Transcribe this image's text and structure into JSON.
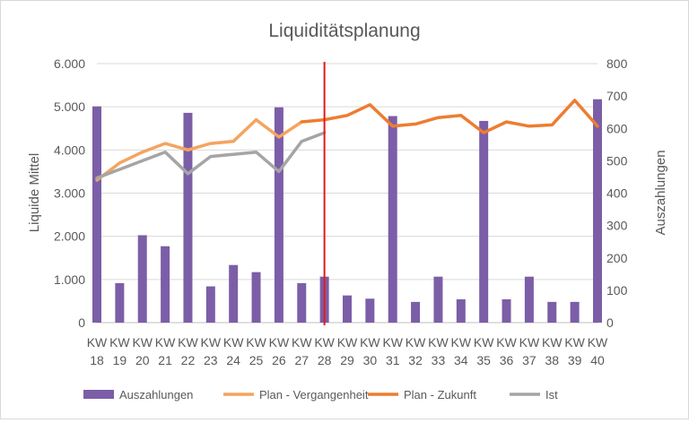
{
  "chart_data": {
    "type": "bar",
    "title": "Liquiditätsplanung",
    "categories": [
      [
        "KW",
        "18"
      ],
      [
        "KW",
        "19"
      ],
      [
        "KW",
        "20"
      ],
      [
        "KW",
        "21"
      ],
      [
        "KW",
        "22"
      ],
      [
        "KW",
        "23"
      ],
      [
        "KW",
        "24"
      ],
      [
        "KW",
        "25"
      ],
      [
        "KW",
        "26"
      ],
      [
        "KW",
        "27"
      ],
      [
        "KW",
        "28"
      ],
      [
        "KW",
        "29"
      ],
      [
        "KW",
        "30"
      ],
      [
        "KW",
        "31"
      ],
      [
        "KW",
        "32"
      ],
      [
        "KW",
        "33"
      ],
      [
        "KW",
        "34"
      ],
      [
        "KW",
        "35"
      ],
      [
        "KW",
        "36"
      ],
      [
        "KW",
        "37"
      ],
      [
        "KW",
        "38"
      ],
      [
        "KW",
        "39"
      ],
      [
        "KW",
        "40"
      ]
    ],
    "left_axis": {
      "label": "Liquide Mittel",
      "ylim": [
        0,
        6000
      ],
      "ticks": [
        0,
        1000,
        2000,
        3000,
        4000,
        5000,
        6000
      ],
      "tick_labels": [
        "0",
        "1.000",
        "2.000",
        "3.000",
        "4.000",
        "5.000",
        "6.000"
      ]
    },
    "right_axis": {
      "label": "Auszahlungen",
      "ylim": [
        0,
        800
      ],
      "ticks": [
        0,
        100,
        200,
        300,
        400,
        500,
        600,
        700,
        800
      ],
      "tick_labels": [
        "0",
        "100",
        "200",
        "300",
        "400",
        "500",
        "600",
        "700",
        "800"
      ]
    },
    "grid": true,
    "legend_position": "bottom",
    "current_week_marker": {
      "category": "28",
      "color": "#e31a1c"
    },
    "series": [
      {
        "name": "Auszahlungen",
        "type": "bar",
        "axis": "right",
        "color": "#7b5ea7",
        "values": [
          668,
          122,
          270,
          236,
          648,
          112,
          178,
          156,
          665,
          122,
          142,
          84,
          74,
          638,
          64,
          142,
          72,
          623,
          72,
          142,
          64,
          64,
          690
        ]
      },
      {
        "name": "Plan - Vergangenheit",
        "type": "line",
        "axis": "left",
        "color": "#f4a460",
        "values": [
          3300,
          3700,
          3950,
          4150,
          4000,
          4150,
          4200,
          4700,
          4300,
          4650,
          null,
          null,
          null,
          null,
          null,
          null,
          null,
          null,
          null,
          null,
          null,
          null,
          null
        ]
      },
      {
        "name": "Plan - Zukunft",
        "type": "line",
        "axis": "left",
        "color": "#ed7d31",
        "values": [
          null,
          null,
          null,
          null,
          null,
          null,
          null,
          null,
          null,
          4650,
          4700,
          4800,
          5050,
          4550,
          4600,
          4750,
          4800,
          4400,
          4650,
          4550,
          4580,
          5150,
          4550
        ]
      },
      {
        "name": "Ist",
        "type": "line",
        "axis": "left",
        "color": "#a5a5a5",
        "values": [
          3350,
          3550,
          3750,
          3950,
          3450,
          3850,
          3900,
          3950,
          3500,
          4200,
          4400,
          null,
          null,
          null,
          null,
          null,
          null,
          null,
          null,
          null,
          null,
          null,
          null
        ]
      }
    ]
  }
}
